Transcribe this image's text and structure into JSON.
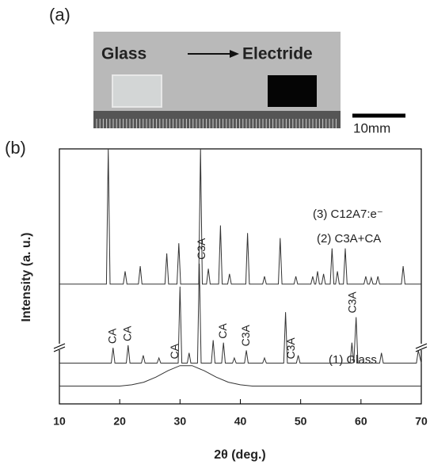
{
  "panel_labels": [
    "(a)",
    "(b)"
  ],
  "photo": {
    "left_label": "Glass",
    "right_label": "Electride",
    "scale_bar": "10mm"
  },
  "chart_data": {
    "type": "line",
    "x_label": "2θ (deg.)",
    "y_label": "Intensity (a. u.)",
    "xlim": [
      10,
      70
    ],
    "xticks": [
      10,
      20,
      30,
      40,
      50,
      60,
      70
    ],
    "ylim": [
      0,
      100
    ],
    "series": [
      {
        "name": "(1) Glass",
        "color": "#333333",
        "x": [
          10,
          12,
          14,
          16,
          18,
          20,
          22,
          24,
          26,
          28,
          30,
          32,
          34,
          36,
          38,
          40,
          42,
          44,
          46,
          48,
          50,
          52,
          54,
          56,
          58,
          60,
          62,
          64,
          66,
          68,
          70
        ],
        "values": [
          7,
          7,
          7,
          7,
          7,
          7,
          7.5,
          8.5,
          10.5,
          13,
          15,
          15,
          13,
          10.5,
          8.5,
          7.5,
          7,
          7,
          7,
          7,
          7,
          7,
          7,
          7,
          7,
          7,
          7,
          7,
          7,
          7,
          7
        ]
      },
      {
        "name": "(2) C3A+CA",
        "color": "#333333",
        "x": [
          10,
          18.6,
          18.9,
          19.2,
          21.1,
          21.4,
          21.7,
          23.6,
          23.9,
          24.2,
          26.2,
          26.5,
          26.8,
          29.7,
          30.0,
          30.3,
          31.2,
          31.5,
          31.8,
          32.9,
          33.2,
          33.5,
          35.2,
          35.5,
          35.8,
          36.9,
          37.2,
          37.5,
          38.7,
          39,
          39.3,
          40.7,
          41,
          41.3,
          43.7,
          44,
          44.3,
          47.2,
          47.5,
          47.8,
          49.3,
          49.6,
          49.9,
          58.2,
          58.5,
          58.8,
          59.2,
          59.5,
          63.1,
          63.4,
          63.7,
          69.2,
          69.5,
          70
        ],
        "values": [
          16,
          16,
          22,
          16,
          16,
          23,
          16,
          16,
          19,
          16,
          16,
          18,
          16,
          16,
          46,
          16,
          16,
          20,
          16,
          16,
          55,
          16,
          16,
          25,
          16,
          16,
          24,
          16,
          16,
          18,
          16,
          16,
          21,
          16,
          16,
          18,
          16,
          16,
          36,
          16,
          16,
          19,
          16,
          16,
          24,
          16,
          34,
          16,
          16,
          20,
          16,
          16,
          21,
          16
        ]
      },
      {
        "name": "(3) C12A7:e⁻",
        "color": "#333333",
        "x": [
          10,
          17.8,
          18.1,
          18.4,
          20.6,
          20.9,
          21.2,
          23.1,
          23.4,
          23.7,
          27.5,
          27.8,
          28.1,
          29.5,
          29.8,
          30.1,
          33.1,
          33.4,
          33.7,
          34.4,
          34.7,
          35,
          36.4,
          36.7,
          37,
          37.9,
          38.2,
          38.5,
          40.9,
          41.2,
          41.5,
          43.7,
          44,
          44.3,
          46.3,
          46.6,
          46.9,
          48.9,
          49.2,
          49.5,
          51.7,
          52,
          52.3,
          52.5,
          52.8,
          53.1,
          53.5,
          53.8,
          54.1,
          54.9,
          55.2,
          55.5,
          55.8,
          56.1,
          56.4,
          57.1,
          57.4,
          57.7,
          60.5,
          60.8,
          61.1,
          61.4,
          61.7,
          62,
          62.5,
          62.8,
          63.1,
          66.7,
          67,
          67.3,
          70
        ],
        "values": [
          47,
          47,
          100,
          47,
          47,
          52,
          47,
          47,
          54,
          47,
          47,
          59,
          47,
          47,
          63,
          47,
          47,
          100,
          47,
          47,
          53,
          47,
          47,
          70,
          47,
          47,
          51,
          47,
          47,
          67,
          47,
          47,
          50,
          47,
          47,
          65,
          47,
          47,
          50,
          47,
          47,
          50,
          47,
          47,
          52,
          47,
          47,
          51,
          47,
          47,
          61,
          47,
          47,
          52,
          47,
          47,
          61,
          47,
          47,
          50,
          47,
          47,
          49.5,
          47,
          47,
          50,
          47,
          47,
          54,
          47,
          47
        ]
      }
    ],
    "annotations": [
      {
        "text": "CA",
        "x": 18.9
      },
      {
        "text": "CA",
        "x": 21.4
      },
      {
        "text": "CA",
        "x": 29.2
      },
      {
        "text": "C3A",
        "x": 33.7
      },
      {
        "text": "CA",
        "x": 37.2
      },
      {
        "text": "C3A",
        "x": 41
      },
      {
        "text": "C3A",
        "x": 48.5
      },
      {
        "text": "C3A",
        "x": 58.7
      }
    ]
  }
}
